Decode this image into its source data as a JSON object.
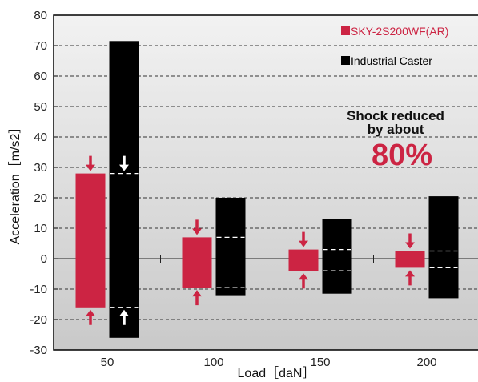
{
  "colors": {
    "sky": "#cc2443",
    "industrial": "#000000",
    "plot_bg_top": "#f2f2f2",
    "plot_bg_bottom": "#c9c9c9"
  },
  "chart_data": {
    "type": "bar",
    "title": "",
    "xlabel": "Load［daN］",
    "ylabel": "Acceleration［m/s2］",
    "categories": [
      "50",
      "100",
      "150",
      "200"
    ],
    "ylim": [
      -30,
      80
    ],
    "yticks": [
      -30,
      -20,
      -10,
      0,
      10,
      20,
      30,
      40,
      50,
      60,
      70,
      80
    ],
    "grid": true,
    "legend_position": "top-right",
    "series": [
      {
        "name": "SKY-2S200WF(AR)",
        "color": "#cc2443",
        "min": [
          -16,
          -9.5,
          -4,
          -3
        ],
        "max": [
          28,
          7,
          3,
          2.5
        ]
      },
      {
        "name": "Industrial Caster",
        "color": "#000000",
        "min": [
          -26,
          -12,
          -11.5,
          -13
        ],
        "max": [
          71.5,
          20,
          13,
          20.5
        ]
      }
    ],
    "reference_lines": {
      "series": "Industrial Caster",
      "upper": [
        28,
        7,
        3,
        2.5
      ],
      "lower": [
        -16,
        -9.5,
        -4,
        -3
      ]
    },
    "annotation": {
      "line1": "Shock reduced",
      "line2": "by about",
      "line3": "80%"
    }
  }
}
